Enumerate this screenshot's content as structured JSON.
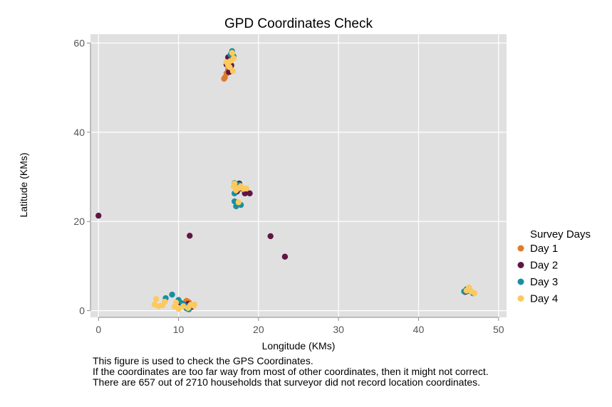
{
  "chart_data": {
    "type": "scatter",
    "title": "GPD Coordinates Check",
    "xlabel": "Longitude (KMs)",
    "ylabel": "Latitude (KMs)",
    "xlim": [
      -1,
      51
    ],
    "ylim": [
      -1.5,
      62
    ],
    "xticks": [
      0,
      10,
      20,
      30,
      40,
      50
    ],
    "yticks": [
      0,
      20,
      40,
      60
    ],
    "grid": true,
    "legend": {
      "title": "Survey Days",
      "position": "right"
    },
    "series": [
      {
        "name": "Day 1",
        "color": "#E07B2B",
        "points": [
          [
            15.8,
            52.3
          ],
          [
            16.0,
            53.2
          ],
          [
            16.2,
            54.0
          ],
          [
            16.5,
            53.6
          ],
          [
            15.7,
            52.0
          ],
          [
            11.0,
            2.2
          ],
          [
            11.3,
            1.9
          ],
          [
            17.8,
            27.4
          ],
          [
            46.0,
            4.3
          ]
        ]
      },
      {
        "name": "Day 2",
        "color": "#5E1744",
        "points": [
          [
            0.0,
            21.3
          ],
          [
            11.4,
            16.8
          ],
          [
            21.5,
            16.7
          ],
          [
            23.3,
            12.1
          ],
          [
            16.2,
            56.8
          ],
          [
            16.6,
            55.0
          ],
          [
            16.0,
            55.2
          ],
          [
            16.3,
            53.5
          ],
          [
            17.6,
            28.5
          ],
          [
            18.3,
            26.3
          ],
          [
            18.9,
            26.3
          ],
          [
            18.0,
            27.3
          ],
          [
            17.3,
            26.7
          ],
          [
            11.2,
            1.5
          ],
          [
            11.6,
            0.8
          ],
          [
            10.2,
            1.8
          ],
          [
            45.8,
            4.2
          ],
          [
            46.3,
            4.7
          ]
        ]
      },
      {
        "name": "Day 3",
        "color": "#1A8FA0",
        "points": [
          [
            16.7,
            58.2
          ],
          [
            16.5,
            57.4
          ],
          [
            16.9,
            57.0
          ],
          [
            17.0,
            28.6
          ],
          [
            17.6,
            28.2
          ],
          [
            17.0,
            26.3
          ],
          [
            17.8,
            23.7
          ],
          [
            17.2,
            23.4
          ],
          [
            17.0,
            24.5
          ],
          [
            17.4,
            24.0
          ],
          [
            9.2,
            3.6
          ],
          [
            8.4,
            2.8
          ],
          [
            10.0,
            2.4
          ],
          [
            10.8,
            1.1
          ],
          [
            11.0,
            0.5
          ],
          [
            11.3,
            0.3
          ],
          [
            10.5,
            1.6
          ],
          [
            45.7,
            4.3
          ],
          [
            46.2,
            4.4
          ],
          [
            46.8,
            3.9
          ],
          [
            46.0,
            4.8
          ]
        ]
      },
      {
        "name": "Day 4",
        "color": "#FCC95F",
        "points": [
          [
            16.5,
            56.0
          ],
          [
            16.9,
            56.6
          ],
          [
            16.2,
            55.0
          ],
          [
            16.8,
            53.7
          ],
          [
            16.0,
            55.7
          ],
          [
            16.7,
            57.8
          ],
          [
            16.4,
            54.6
          ],
          [
            17.0,
            28.5
          ],
          [
            17.5,
            27.5
          ],
          [
            18.1,
            27.3
          ],
          [
            17.2,
            27.0
          ],
          [
            16.9,
            27.8
          ],
          [
            18.5,
            27.4
          ],
          [
            17.8,
            27.9
          ],
          [
            17.5,
            24.3
          ],
          [
            7.2,
            2.6
          ],
          [
            7.0,
            1.4
          ],
          [
            7.5,
            1.0
          ],
          [
            8.0,
            1.2
          ],
          [
            8.3,
            2.0
          ],
          [
            9.5,
            0.9
          ],
          [
            10.0,
            0.4
          ],
          [
            10.6,
            1.0
          ],
          [
            11.5,
            1.3
          ],
          [
            11.9,
            1.1
          ],
          [
            12.0,
            1.4
          ],
          [
            11.2,
            0.6
          ],
          [
            9.7,
            1.8
          ],
          [
            46.0,
            4.5
          ],
          [
            46.3,
            5.2
          ],
          [
            46.6,
            4.3
          ],
          [
            47.0,
            3.9
          ]
        ]
      }
    ]
  },
  "caption": {
    "line1": "This figure is used to check the GPS Coordinates.",
    "line2": "If the coordinates are too far way from most of other coordinates, then it might not correct.",
    "line3": "There are 657 out of 2710 households that surveyor did not record location coordinates."
  }
}
